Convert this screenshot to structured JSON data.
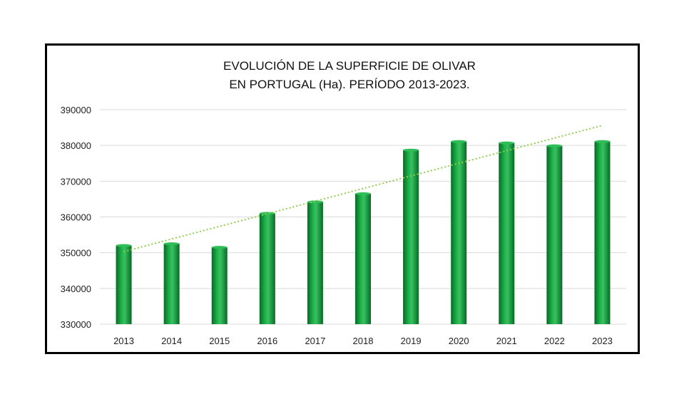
{
  "chart_data": {
    "type": "bar",
    "title_line1": "EVOLUCIÓN DE LA SUPERFICIE DE OLIVAR",
    "title_line2": "EN PORTUGAL (Ha). PERÍODO 2013-2023.",
    "categories": [
      "2013",
      "2014",
      "2015",
      "2016",
      "2017",
      "2018",
      "2019",
      "2020",
      "2021",
      "2022",
      "2023"
    ],
    "values": [
      352000,
      352500,
      351500,
      361000,
      364200,
      366500,
      378700,
      381100,
      380700,
      379900,
      381100
    ],
    "ylim": [
      330000,
      390000
    ],
    "yticks": [
      "330000",
      "340000",
      "350000",
      "360000",
      "370000",
      "380000",
      "390000"
    ],
    "trendline": {
      "style": "dotted",
      "start": 350300,
      "end": 385600
    },
    "grid": true,
    "legend": "none",
    "colors": {
      "bar": "#0e9a3a",
      "bar_dark": "#066b25",
      "bar_light": "#37c25f",
      "trend": "#8fcf4e",
      "grid": "#d9d9d9"
    }
  }
}
